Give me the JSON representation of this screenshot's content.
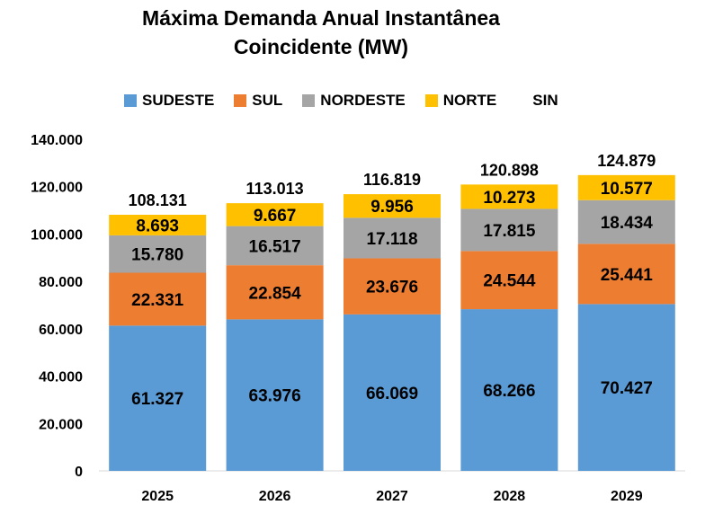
{
  "chart_data": {
    "type": "bar",
    "stacked": true,
    "title_line1": "Máxima Demanda Anual Instantânea",
    "title_line2": "Coincidente (MW)",
    "categories": [
      "2025",
      "2026",
      "2027",
      "2028",
      "2029"
    ],
    "series": [
      {
        "name": "SUDESTE",
        "color": "#5B9BD5",
        "values": [
          61327,
          63976,
          66069,
          68266,
          70427
        ],
        "labels": [
          "61.327",
          "63.976",
          "66.069",
          "68.266",
          "70.427"
        ]
      },
      {
        "name": "SUL",
        "color": "#ED7D31",
        "values": [
          22331,
          22854,
          23676,
          24544,
          25441
        ],
        "labels": [
          "22.331",
          "22.854",
          "23.676",
          "24.544",
          "25.441"
        ]
      },
      {
        "name": "NORDESTE",
        "color": "#A5A5A5",
        "values": [
          15780,
          16517,
          17118,
          17815,
          18434
        ],
        "labels": [
          "15.780",
          "16.517",
          "17.118",
          "17.815",
          "18.434"
        ]
      },
      {
        "name": "NORTE",
        "color": "#FFC000",
        "values": [
          8693,
          9667,
          9956,
          10273,
          10577
        ],
        "labels": [
          "8.693",
          "9.667",
          "9.956",
          "10.273",
          "10.577"
        ]
      }
    ],
    "totals": {
      "name": "SIN",
      "values": [
        108131,
        113013,
        116819,
        120898,
        124879
      ],
      "labels": [
        "108.131",
        "113.013",
        "116.819",
        "120.898",
        "124.879"
      ]
    },
    "y_ticks": [
      0,
      20000,
      40000,
      60000,
      80000,
      100000,
      120000,
      140000
    ],
    "y_tick_labels": [
      "0",
      "20.000",
      "40.000",
      "60.000",
      "80.000",
      "100.000",
      "120.000",
      "140.000"
    ],
    "ylim": [
      0,
      140000
    ],
    "grid": false,
    "legend_position": "top"
  }
}
